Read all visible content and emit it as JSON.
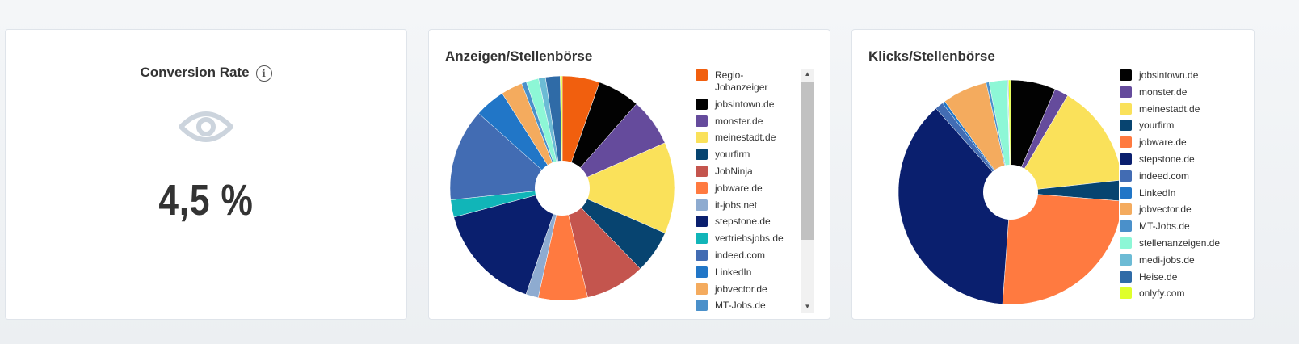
{
  "kpi": {
    "title": "Conversion Rate",
    "info_icon": "info-icon",
    "icon": "eye-icon",
    "value": "4,5 %"
  },
  "chart_data": [
    {
      "type": "pie",
      "donut": true,
      "title": "Anzeigen/Stellenbörse",
      "legend": "right",
      "slices": [
        {
          "label": "Regio-Jobanzeiger",
          "value": 5.4,
          "color": "#F15F0E"
        },
        {
          "label": "jobsintown.de",
          "value": 6.1,
          "color": "#020202"
        },
        {
          "label": "monster.de",
          "value": 6.9,
          "color": "#654B9C"
        },
        {
          "label": "meinestadt.de",
          "value": 13.2,
          "color": "#FAE15A"
        },
        {
          "label": "yourfirm",
          "value": 6.2,
          "color": "#074470"
        },
        {
          "label": "JobNinja",
          "value": 8.6,
          "color": "#C4554E"
        },
        {
          "label": "jobware.de",
          "value": 7.1,
          "color": "#FF7A40"
        },
        {
          "label": "it-jobs.net",
          "value": 1.8,
          "color": "#8EABD0"
        },
        {
          "label": "stepstone.de",
          "value": 15.6,
          "color": "#0A1F6E"
        },
        {
          "label": "vertriebsjobs.de",
          "value": 2.5,
          "color": "#11B5B8"
        },
        {
          "label": "indeed.com",
          "value": 13.3,
          "color": "#426CB3"
        },
        {
          "label": "LinkedIn",
          "value": 4.4,
          "color": "#2176C7"
        },
        {
          "label": "jobvector.de",
          "value": 3.1,
          "color": "#F4AB5E"
        },
        {
          "label": "MT-Jobs.de",
          "value": 0.7,
          "color": "#4A90CA"
        },
        {
          "label": "",
          "value": 1.8,
          "color": "#8DF7D6"
        },
        {
          "label": "",
          "value": 1.0,
          "color": "#6CBBD5"
        },
        {
          "label": "",
          "value": 2.1,
          "color": "#2F6BA7"
        },
        {
          "label": "",
          "value": 0.3,
          "color": "#DFFF2B"
        }
      ]
    },
    {
      "type": "pie",
      "donut": true,
      "title": "Klicks/Stellenbörse",
      "legend": "right",
      "slices": [
        {
          "label": "jobsintown.de",
          "value": 6.5,
          "color": "#020202"
        },
        {
          "label": "monster.de",
          "value": 2.0,
          "color": "#654B9C"
        },
        {
          "label": "meinestadt.de",
          "value": 14.8,
          "color": "#FAE15A"
        },
        {
          "label": "yourfirm",
          "value": 3.0,
          "color": "#074470"
        },
        {
          "label": "jobware.de",
          "value": 24.9,
          "color": "#FF7A40"
        },
        {
          "label": "stepstone.de",
          "value": 37.3,
          "color": "#0A1F6E"
        },
        {
          "label": "indeed.com",
          "value": 1.2,
          "color": "#426CB3"
        },
        {
          "label": "LinkedIn",
          "value": 0.4,
          "color": "#2176C7"
        },
        {
          "label": "jobvector.de",
          "value": 6.5,
          "color": "#F4AB5E"
        },
        {
          "label": "MT-Jobs.de",
          "value": 0.4,
          "color": "#4A90CA"
        },
        {
          "label": "stellenanzeigen.de",
          "value": 2.6,
          "color": "#8DF7D6"
        },
        {
          "label": "medi-jobs.de",
          "value": 0.1,
          "color": "#6CBBD5"
        },
        {
          "label": "Heise.de",
          "value": 0.1,
          "color": "#2F6BA7"
        },
        {
          "label": "onlyfy.com",
          "value": 0.3,
          "color": "#DFFF2B"
        }
      ]
    }
  ]
}
